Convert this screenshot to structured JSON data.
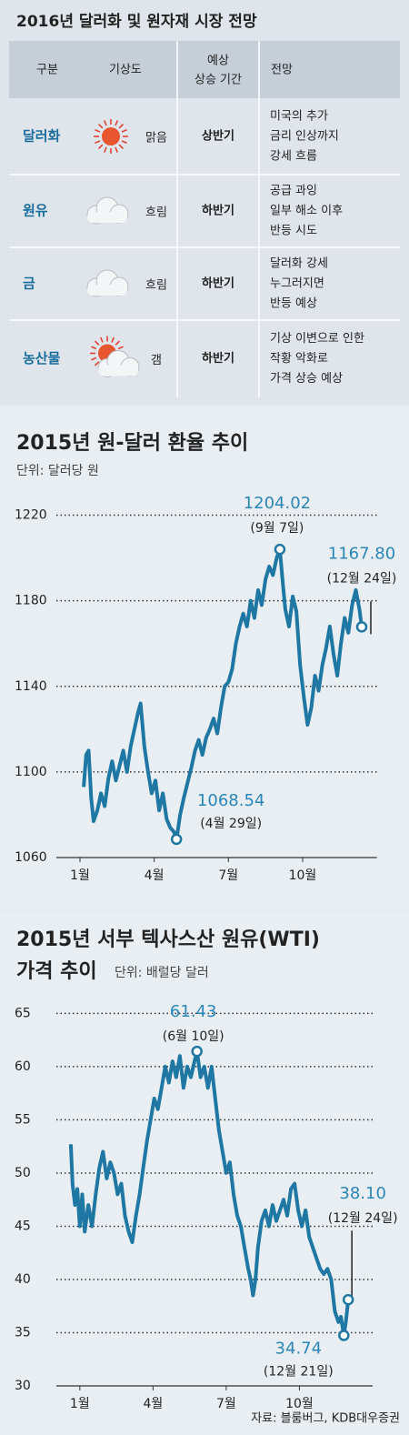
{
  "table": {
    "title": "2016년 달러화 및 원자재 시장 전망",
    "header": [
      "구분",
      "기상도",
      [
        "예상",
        "상승 기간"
      ],
      "전망"
    ],
    "rows": [
      {
        "name": "달러화",
        "icon": "sun",
        "weather": "맑음",
        "period": "상반기",
        "outlook": [
          "미국의 추가",
          "금리 인상까지",
          "강세 흐름"
        ]
      },
      {
        "name": "원유",
        "icon": "cloud",
        "weather": "흐림",
        "period": "하반기",
        "outlook": [
          "공급 과잉",
          "일부 해소 이후",
          "반등 시도"
        ]
      },
      {
        "name": "금",
        "icon": "cloud",
        "weather": "흐림",
        "period": "하반기",
        "outlook": [
          "달러화 강세",
          "누그러지면",
          "반등 예상"
        ]
      },
      {
        "name": "농산물",
        "icon": "sun-cloud",
        "weather": "갬",
        "period": "하반기",
        "outlook": [
          "기상 이변으로 인한",
          "작황 악화로",
          "가격 상승 예상"
        ]
      }
    ]
  },
  "chart_data": [
    {
      "type": "line",
      "title": [
        "2015년 원-달러 환율 추이"
      ],
      "subtitle": "단위: 달러당 원",
      "color": "#1f77a3",
      "x": [
        1.15,
        1.25,
        1.35,
        1.45,
        1.55,
        1.7,
        1.85,
        2.0,
        2.15,
        2.3,
        2.45,
        2.6,
        2.75,
        2.9,
        3.05,
        3.2,
        3.35,
        3.45,
        3.6,
        3.75,
        3.9,
        4.05,
        4.2,
        4.35,
        4.5,
        4.65,
        4.8,
        4.9,
        5.05,
        5.2,
        5.35,
        5.5,
        5.65,
        5.8,
        5.95,
        6.1,
        6.25,
        6.4,
        6.55,
        6.7,
        6.85,
        7.0,
        7.15,
        7.3,
        7.45,
        7.6,
        7.75,
        7.9,
        8.05,
        8.2,
        8.35,
        8.5,
        8.65,
        8.8,
        8.95,
        9.08,
        9.2,
        9.3,
        9.45,
        9.6,
        9.75,
        9.9,
        10.05,
        10.2,
        10.35,
        10.5,
        10.65,
        10.8,
        10.95,
        11.1,
        11.25,
        11.4,
        11.55,
        11.7,
        11.85,
        12.0,
        12.15,
        12.3,
        12.39
      ],
      "values": [
        1093,
        1108,
        1110,
        1088,
        1077,
        1082,
        1090,
        1084,
        1097,
        1105,
        1096,
        1103,
        1110,
        1100,
        1112,
        1120,
        1128,
        1132,
        1112,
        1100,
        1090,
        1096,
        1082,
        1090,
        1078,
        1074,
        1072,
        1068.54,
        1080,
        1088,
        1095,
        1102,
        1110,
        1115,
        1108,
        1116,
        1120,
        1125,
        1118,
        1130,
        1140,
        1142,
        1148,
        1160,
        1168,
        1174,
        1168,
        1180,
        1172,
        1185,
        1178,
        1190,
        1196,
        1192,
        1200,
        1204.02,
        1188,
        1176,
        1168,
        1182,
        1175,
        1150,
        1135,
        1122,
        1130,
        1145,
        1138,
        1150,
        1158,
        1168,
        1155,
        1145,
        1160,
        1172,
        1165,
        1178,
        1185,
        1176,
        1167.8
      ],
      "xlim": [
        0.5,
        13.0
      ],
      "xticks": [
        {
          "value": 1,
          "label": "1월"
        },
        {
          "value": 4,
          "label": "4월"
        },
        {
          "value": 7,
          "label": "7월"
        },
        {
          "value": 10,
          "label": "10월"
        }
      ],
      "ylim": [
        1060,
        1230
      ],
      "yticks": [
        1060,
        1100,
        1140,
        1180,
        1220
      ],
      "grid": true,
      "annotations": [
        {
          "x": 9.08,
          "value": 1204.02,
          "label": "1204.02",
          "date": "(9월 7일)"
        },
        {
          "x": 12.39,
          "value": 1167.8,
          "label": "1167.80",
          "date": "(12월 24일)"
        },
        {
          "x": 4.9,
          "value": 1068.54,
          "label": "1068.54",
          "date": "(4월 29일)"
        }
      ]
    },
    {
      "type": "line",
      "title": [
        "2015년 서부 텍사스산 원유(WTI)",
        "가격 추이"
      ],
      "subtitle": "단위: 배럴당 달러",
      "color": "#1f77a3",
      "x": [
        0.63,
        0.7,
        0.8,
        0.9,
        1.0,
        1.1,
        1.2,
        1.35,
        1.5,
        1.65,
        1.8,
        1.95,
        2.1,
        2.25,
        2.4,
        2.55,
        2.7,
        2.85,
        3.0,
        3.15,
        3.3,
        3.45,
        3.6,
        3.75,
        3.9,
        4.05,
        4.2,
        4.35,
        4.5,
        4.65,
        4.8,
        4.95,
        5.1,
        5.25,
        5.4,
        5.55,
        5.7,
        5.8,
        5.95,
        6.1,
        6.25,
        6.4,
        6.55,
        6.7,
        6.85,
        7.0,
        7.15,
        7.3,
        7.45,
        7.6,
        7.75,
        7.9,
        8.0,
        8.1,
        8.2,
        8.3,
        8.45,
        8.6,
        8.75,
        8.9,
        9.05,
        9.2,
        9.35,
        9.5,
        9.65,
        9.8,
        9.95,
        10.1,
        10.25,
        10.4,
        10.55,
        10.7,
        10.85,
        11.0,
        11.15,
        11.3,
        11.45,
        11.6,
        11.7,
        11.82,
        11.9,
        12.0
      ],
      "values": [
        52.7,
        49,
        47,
        48.5,
        45,
        48,
        44.5,
        47,
        45,
        48,
        50.5,
        52,
        49.5,
        51,
        50,
        48,
        49,
        46,
        44.5,
        43.5,
        46,
        48,
        50.5,
        53,
        55,
        57,
        56,
        58,
        60,
        58.5,
        60.5,
        59,
        61,
        58,
        60,
        59,
        60.5,
        61.43,
        59,
        60,
        58,
        60,
        57,
        54,
        52,
        50,
        51,
        48,
        46,
        45,
        43,
        41,
        40,
        38.5,
        40,
        43,
        45.5,
        46.5,
        45,
        47,
        45.5,
        46.5,
        47.5,
        46,
        48.5,
        49,
        46.5,
        45,
        46.5,
        44,
        43,
        42,
        41,
        40.5,
        41,
        40,
        37,
        36,
        36.5,
        34.74,
        36,
        38.1
      ],
      "xlim": [
        0.5,
        13.0
      ],
      "xticks": [
        {
          "value": 1,
          "label": "1월"
        },
        {
          "value": 4,
          "label": "4월"
        },
        {
          "value": 7,
          "label": "7월"
        },
        {
          "value": 10,
          "label": "10월"
        }
      ],
      "ylim": [
        30,
        67
      ],
      "yticks": [
        30,
        35,
        40,
        45,
        50,
        55,
        60,
        65
      ],
      "grid": true,
      "annotations": [
        {
          "x": 5.8,
          "value": 61.43,
          "label": "61.43",
          "date": "(6월 10일)"
        },
        {
          "x": 12.0,
          "value": 38.1,
          "label": "38.10",
          "date": "(12월 24일)"
        },
        {
          "x": 11.82,
          "value": 34.74,
          "label": "34.74",
          "date": "(12월 21일)"
        }
      ]
    }
  ],
  "source": "자료: 블룸버그, KDB대우증권"
}
